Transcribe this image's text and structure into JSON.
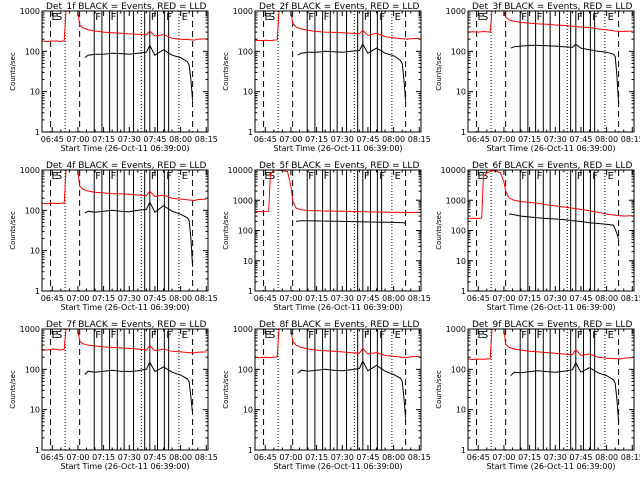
{
  "window": {
    "background": "#ffffff"
  },
  "common": {
    "type": "line",
    "xlabel": "Start Time (26-Oct-11 06:39:00)",
    "ylabel": "Counts/sec",
    "x_tick_labels": [
      "06:45",
      "07:00",
      "07:15",
      "07:30",
      "07:45",
      "08:00",
      "08:15"
    ],
    "x_ticks_minutes": [
      405,
      420,
      435,
      450,
      465,
      480,
      495
    ],
    "x_range_minutes": [
      399,
      496
    ],
    "yscale": "log",
    "colors": {
      "events": "#000000",
      "lld": "#ff0000",
      "frame": "#000000"
    },
    "event_markers": {
      "solid": [
        429.5,
        434,
        438.5,
        443,
        447,
        452.5,
        459,
        462,
        466.5,
        470.5,
        473
      ],
      "dashed": [
        404,
        421,
        487
      ],
      "dotted": [
        412.5,
        457,
        479
      ],
      "letters": [
        {
          "text": "E",
          "x": 404
        },
        {
          "text": "S",
          "x": 406.5
        },
        {
          "text": "F",
          "x": 429.5
        },
        {
          "text": "F",
          "x": 438.5
        },
        {
          "text": "F",
          "x": 462
        },
        {
          "text": "F",
          "x": 471
        },
        {
          "text": "E",
          "x": 480
        }
      ]
    }
  },
  "chart_data": [
    {
      "type": "line",
      "title": "Det_1f BLACK = Events, RED = LLD",
      "xlabel": "Start Time (26-Oct-11 06:39:00)",
      "ylabel": "Counts/sec",
      "ylim": [
        1,
        1000
      ],
      "y_tick_labels": [
        "1",
        "10",
        "100",
        "1000"
      ],
      "series": [
        {
          "color": "#ff0000",
          "x": [
            399,
            402,
            405,
            408,
            410,
            412,
            413,
            416,
            420,
            421,
            423,
            426,
            430,
            435,
            440,
            445,
            450,
            455,
            460,
            462,
            465,
            470,
            475,
            480,
            485,
            488,
            490,
            495
          ],
          "y": [
            180,
            175,
            180,
            180,
            175,
            182,
            1000,
            1000,
            1000,
            450,
            380,
            340,
            320,
            300,
            290,
            280,
            270,
            265,
            255,
            320,
            240,
            260,
            210,
            200,
            195,
            190,
            200,
            205
          ]
        },
        {
          "color": "#000000",
          "x": [
            424,
            426,
            430,
            435,
            440,
            445,
            450,
            455,
            460,
            462,
            465,
            470,
            475,
            480,
            484,
            485,
            486,
            487
          ],
          "y": [
            70,
            80,
            85,
            85,
            90,
            88,
            85,
            90,
            95,
            140,
            80,
            110,
            80,
            70,
            55,
            45,
            20,
            6
          ]
        }
      ]
    },
    {
      "type": "line",
      "title": "Det_2f BLACK = Events, RED = LLD",
      "xlabel": "Start Time (26-Oct-11 06:39:00)",
      "ylabel": "Counts/sec",
      "ylim": [
        1,
        1000
      ],
      "y_tick_labels": [
        "1",
        "10",
        "100",
        "1000"
      ],
      "series": [
        {
          "color": "#ff0000",
          "x": [
            399,
            402,
            405,
            408,
            410,
            412,
            413,
            416,
            420,
            421,
            423,
            426,
            430,
            435,
            440,
            445,
            450,
            455,
            460,
            462,
            465,
            470,
            475,
            480,
            485,
            488,
            490,
            495
          ],
          "y": [
            190,
            185,
            188,
            185,
            190,
            192,
            1000,
            1000,
            1000,
            500,
            400,
            360,
            330,
            310,
            300,
            295,
            290,
            280,
            270,
            330,
            250,
            280,
            230,
            215,
            205,
            200,
            205,
            210
          ]
        },
        {
          "color": "#000000",
          "x": [
            424,
            426,
            430,
            435,
            440,
            445,
            450,
            455,
            460,
            462,
            465,
            470,
            475,
            480,
            484,
            485,
            486,
            487
          ],
          "y": [
            80,
            90,
            95,
            95,
            100,
            98,
            95,
            100,
            105,
            150,
            90,
            120,
            90,
            78,
            60,
            50,
            20,
            6
          ]
        }
      ]
    },
    {
      "type": "line",
      "title": "Det_3f BLACK = Events, RED = LLD",
      "xlabel": "Start Time (26-Oct-11 06:39:00)",
      "ylabel": "Counts/sec",
      "ylim": [
        1,
        1000
      ],
      "y_tick_labels": [
        "1",
        "10",
        "100",
        "1000"
      ],
      "series": [
        {
          "color": "#ff0000",
          "x": [
            399,
            402,
            405,
            408,
            410,
            412,
            413,
            416,
            420,
            421,
            423,
            426,
            430,
            435,
            440,
            445,
            450,
            455,
            460,
            465,
            470,
            475,
            480,
            485,
            490,
            495
          ],
          "y": [
            300,
            305,
            300,
            310,
            305,
            300,
            1000,
            1000,
            1000,
            700,
            600,
            560,
            520,
            500,
            480,
            470,
            450,
            440,
            420,
            400,
            390,
            360,
            340,
            320,
            310,
            320
          ]
        },
        {
          "color": "#000000",
          "x": [
            424,
            426,
            430,
            435,
            440,
            445,
            450,
            455,
            460,
            462,
            465,
            470,
            475,
            480,
            484,
            485,
            486,
            487
          ],
          "y": [
            120,
            130,
            135,
            140,
            140,
            138,
            135,
            130,
            125,
            150,
            120,
            110,
            100,
            95,
            85,
            75,
            25,
            5
          ]
        }
      ]
    },
    {
      "type": "line",
      "title": "Det_4f BLACK = Events, RED = LLD",
      "xlabel": "Start Time (26-Oct-11 06:39:00)",
      "ylabel": "Counts/sec",
      "ylim": [
        1,
        1000
      ],
      "y_tick_labels": [
        "1",
        "10",
        "100",
        "1000"
      ],
      "series": [
        {
          "color": "#ff0000",
          "x": [
            399,
            402,
            405,
            408,
            410,
            412,
            413,
            416,
            420,
            421,
            423,
            426,
            430,
            435,
            440,
            445,
            450,
            455,
            460,
            462,
            465,
            470,
            475,
            480,
            485,
            488,
            490,
            495
          ],
          "y": [
            150,
            145,
            150,
            148,
            150,
            152,
            1000,
            1000,
            1000,
            400,
            330,
            300,
            280,
            270,
            260,
            255,
            250,
            240,
            230,
            300,
            220,
            240,
            200,
            190,
            180,
            175,
            185,
            190
          ]
        },
        {
          "color": "#000000",
          "x": [
            424,
            426,
            430,
            435,
            440,
            445,
            450,
            455,
            460,
            462,
            465,
            470,
            475,
            480,
            484,
            485,
            486,
            487
          ],
          "y": [
            85,
            95,
            90,
            95,
            100,
            95,
            92,
            100,
            105,
            160,
            90,
            130,
            95,
            80,
            65,
            55,
            20,
            4
          ]
        }
      ]
    },
    {
      "type": "line",
      "title": "Det_5f BLACK = Events, RED = LLD",
      "xlabel": "Start Time (26-Oct-11 06:39:00)",
      "ylabel": "Counts/sec",
      "ylim": [
        1,
        10000
      ],
      "y_tick_labels": [
        "1",
        "10",
        "100",
        "1000",
        "10000"
      ],
      "series": [
        {
          "color": "#ff0000",
          "x": [
            399,
            402,
            405,
            407,
            408,
            410,
            412,
            415,
            418,
            420,
            421,
            423,
            426,
            430,
            435,
            440,
            450,
            460,
            470,
            480,
            490,
            495
          ],
          "y": [
            420,
            420,
            425,
            430,
            7000,
            10000,
            10000,
            9500,
            9000,
            3000,
            1000,
            550,
            480,
            460,
            450,
            440,
            430,
            420,
            410,
            400,
            395,
            400
          ]
        },
        {
          "color": "#000000",
          "x": [
            423,
            426,
            430,
            440,
            450,
            460,
            470,
            480,
            486,
            487
          ],
          "y": [
            200,
            210,
            210,
            205,
            200,
            195,
            190,
            185,
            180,
            170
          ]
        }
      ]
    },
    {
      "type": "line",
      "title": "Det_6f BLACK = Events, RED = LLD",
      "xlabel": "Start Time (26-Oct-11 06:39:00)",
      "ylabel": "Counts/sec",
      "ylim": [
        1,
        10000
      ],
      "y_tick_labels": [
        "1",
        "10",
        "100",
        "1000",
        "10000"
      ],
      "series": [
        {
          "color": "#ff0000",
          "x": [
            399,
            402,
            405,
            407,
            408,
            410,
            412,
            415,
            418,
            420,
            421,
            423,
            426,
            430,
            435,
            440,
            445,
            450,
            455,
            460,
            465,
            470,
            475,
            480,
            485,
            490,
            495
          ],
          "y": [
            250,
            255,
            250,
            255,
            6000,
            8000,
            9000,
            9500,
            8000,
            4000,
            2000,
            1200,
            1000,
            900,
            850,
            800,
            700,
            650,
            600,
            550,
            500,
            450,
            400,
            350,
            320,
            300,
            310
          ]
        },
        {
          "color": "#000000",
          "x": [
            423,
            426,
            430,
            435,
            440,
            445,
            450,
            455,
            460,
            465,
            470,
            475,
            480,
            484,
            485,
            486,
            487
          ],
          "y": [
            350,
            330,
            300,
            280,
            260,
            250,
            240,
            230,
            210,
            200,
            180,
            170,
            160,
            150,
            110,
            80,
            50
          ]
        }
      ]
    },
    {
      "type": "line",
      "title": "Det_7f BLACK = Events, RED = LLD",
      "xlabel": "Start Time (26-Oct-11 06:39:00)",
      "ylabel": "Counts/sec",
      "ylim": [
        1,
        1000
      ],
      "y_tick_labels": [
        "1",
        "10",
        "100",
        "1000"
      ],
      "series": [
        {
          "color": "#ff0000",
          "x": [
            399,
            402,
            405,
            408,
            410,
            412,
            413,
            416,
            420,
            421,
            423,
            426,
            430,
            435,
            440,
            445,
            450,
            455,
            460,
            462,
            465,
            470,
            475,
            480,
            485,
            488,
            490,
            495
          ],
          "y": [
            310,
            300,
            320,
            310,
            300,
            315,
            1000,
            1000,
            1000,
            500,
            430,
            400,
            380,
            360,
            350,
            340,
            330,
            320,
            300,
            380,
            290,
            320,
            280,
            270,
            260,
            255,
            265,
            270
          ]
        },
        {
          "color": "#000000",
          "x": [
            424,
            426,
            430,
            435,
            440,
            445,
            450,
            455,
            460,
            462,
            465,
            470,
            475,
            480,
            484,
            485,
            486,
            487
          ],
          "y": [
            75,
            90,
            85,
            90,
            95,
            90,
            88,
            92,
            100,
            150,
            88,
            115,
            85,
            72,
            58,
            48,
            20,
            8
          ]
        }
      ]
    },
    {
      "type": "line",
      "title": "Det_8f BLACK = Events, RED = LLD",
      "xlabel": "Start Time (26-Oct-11 06:39:00)",
      "ylabel": "Counts/sec",
      "ylim": [
        1,
        1000
      ],
      "y_tick_labels": [
        "1",
        "10",
        "100",
        "1000"
      ],
      "series": [
        {
          "color": "#ff0000",
          "x": [
            399,
            402,
            405,
            408,
            410,
            412,
            413,
            416,
            420,
            421,
            423,
            426,
            430,
            435,
            440,
            445,
            450,
            455,
            460,
            462,
            465,
            470,
            475,
            480,
            485,
            488,
            490,
            495
          ],
          "y": [
            200,
            195,
            200,
            195,
            200,
            205,
            1000,
            1000,
            1000,
            500,
            400,
            350,
            320,
            300,
            290,
            280,
            270,
            260,
            250,
            330,
            240,
            260,
            220,
            210,
            200,
            195,
            205,
            210
          ]
        },
        {
          "color": "#000000",
          "x": [
            424,
            426,
            430,
            435,
            440,
            445,
            450,
            455,
            460,
            462,
            465,
            470,
            475,
            480,
            484,
            485,
            486,
            487
          ],
          "y": [
            80,
            95,
            90,
            95,
            100,
            95,
            92,
            98,
            105,
            160,
            92,
            125,
            90,
            75,
            60,
            50,
            20,
            6
          ]
        }
      ]
    },
    {
      "type": "line",
      "title": "Det_9f BLACK = Events, RED = LLD",
      "xlabel": "Start Time (26-Oct-11 06:39:00)",
      "ylabel": "Counts/sec",
      "ylim": [
        1,
        1000
      ],
      "y_tick_labels": [
        "1",
        "10",
        "100",
        "1000"
      ],
      "series": [
        {
          "color": "#ff0000",
          "x": [
            399,
            402,
            405,
            408,
            410,
            412,
            413,
            416,
            420,
            421,
            423,
            426,
            430,
            435,
            440,
            445,
            450,
            455,
            460,
            462,
            465,
            470,
            475,
            480,
            485,
            488,
            490,
            495
          ],
          "y": [
            180,
            175,
            180,
            178,
            180,
            182,
            1000,
            1000,
            1000,
            420,
            350,
            320,
            300,
            280,
            270,
            260,
            250,
            240,
            230,
            310,
            220,
            240,
            200,
            190,
            185,
            180,
            188,
            195
          ]
        },
        {
          "color": "#000000",
          "x": [
            424,
            426,
            430,
            435,
            440,
            445,
            450,
            455,
            460,
            462,
            465,
            470,
            475,
            480,
            484,
            485,
            486,
            487
          ],
          "y": [
            70,
            85,
            82,
            88,
            92,
            88,
            85,
            90,
            98,
            145,
            85,
            110,
            82,
            70,
            55,
            45,
            18,
            5
          ]
        }
      ]
    }
  ]
}
